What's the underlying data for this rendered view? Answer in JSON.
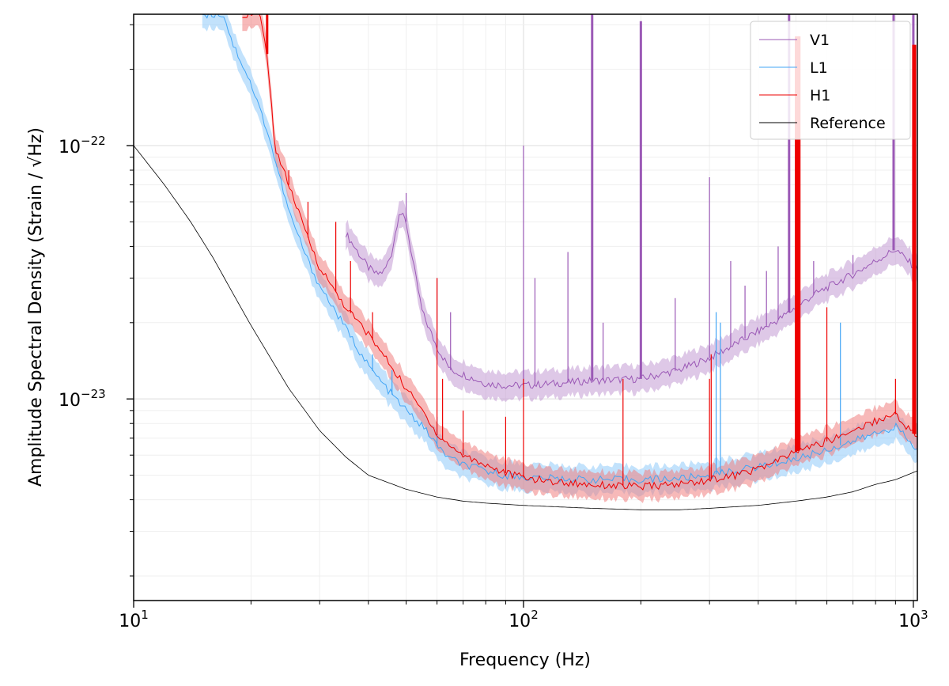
{
  "chart_data": {
    "type": "line",
    "title": "",
    "xlabel": "Frequency (Hz)",
    "ylabel": "Amplitude Spectral Density (Strain / √Hz)",
    "xscale": "log",
    "yscale": "log",
    "xlim": [
      10,
      1024
    ],
    "ylim": [
      1.6e-24,
      3.3e-22
    ],
    "grid": true,
    "legend_position": "top-right",
    "x_ticks": [
      {
        "value": 10,
        "base": "10",
        "exp": "1"
      },
      {
        "value": 100,
        "base": "10",
        "exp": "2"
      },
      {
        "value": 1000,
        "base": "10",
        "exp": "3"
      }
    ],
    "y_ticks": [
      {
        "value": 1e-23,
        "base": "10",
        "exp": "−23"
      },
      {
        "value": 1e-22,
        "base": "10",
        "exp": "−22"
      }
    ],
    "series": [
      {
        "name": "V1",
        "color": "#9b59b6",
        "band_color": "#c39bd3",
        "x": [
          35,
          38,
          40,
          42,
          44,
          46,
          48,
          50,
          52,
          55,
          60,
          65,
          70,
          80,
          90,
          100,
          120,
          150,
          200,
          250,
          300,
          350,
          400,
          450,
          500,
          550,
          600,
          700,
          800,
          900,
          1000,
          1024
        ],
        "y": [
          4.5e-23,
          3.7e-23,
          3.3e-23,
          3.1e-23,
          3.2e-23,
          3.8e-23,
          5.5e-23,
          5e-23,
          3.5e-23,
          2.2e-23,
          1.6e-23,
          1.3e-23,
          1.25e-23,
          1.15e-23,
          1.13e-23,
          1.13e-23,
          1.15e-23,
          1.18e-23,
          1.2e-23,
          1.3e-23,
          1.45e-23,
          1.65e-23,
          1.85e-23,
          2.05e-23,
          2.3e-23,
          2.55e-23,
          2.75e-23,
          3.1e-23,
          3.5e-23,
          3.9e-23,
          3.35e-23,
          3.3e-23
        ],
        "spikes": [
          {
            "f": 50,
            "v": 6.5e-23
          },
          {
            "f": 60,
            "v": 3e-23
          },
          {
            "f": 65,
            "v": 2.2e-23
          },
          {
            "f": 100,
            "v": 1e-22
          },
          {
            "f": 107,
            "v": 3e-23
          },
          {
            "f": 130,
            "v": 3.8e-23
          },
          {
            "f": 150,
            "v": 3.3e-22
          },
          {
            "f": 160,
            "v": 2e-23
          },
          {
            "f": 200,
            "v": 3.1e-22
          },
          {
            "f": 245,
            "v": 2.5e-23
          },
          {
            "f": 300,
            "v": 7.5e-23
          },
          {
            "f": 340,
            "v": 3.5e-23
          },
          {
            "f": 370,
            "v": 2.8e-23
          },
          {
            "f": 420,
            "v": 3.2e-23
          },
          {
            "f": 450,
            "v": 4e-23
          },
          {
            "f": 480,
            "v": 3.3e-22
          },
          {
            "f": 500,
            "v": 5e-23
          },
          {
            "f": 555,
            "v": 3.5e-23
          },
          {
            "f": 700,
            "v": 3.7e-23
          },
          {
            "f": 890,
            "v": 3.3e-22
          },
          {
            "f": 1000,
            "v": 3.3e-22
          }
        ]
      },
      {
        "name": "L1",
        "color": "#42a5f5",
        "band_color": "#90caf9",
        "x": [
          15,
          16,
          17,
          18,
          19,
          20,
          22,
          25,
          28,
          30,
          35,
          40,
          45,
          50,
          55,
          58,
          60,
          65,
          70,
          80,
          90,
          100,
          120,
          150,
          200,
          250,
          300,
          350,
          400,
          500,
          600,
          700,
          800,
          900,
          1000,
          1024
        ],
        "y": [
          3.3e-22,
          3.3e-22,
          3.3e-22,
          2.5e-22,
          2.1e-22,
          1.75e-22,
          1.15e-22,
          5.5e-23,
          3.5e-23,
          2.8e-23,
          1.9e-23,
          1.35e-23,
          1.08e-23,
          9e-24,
          7.8e-24,
          7.1e-24,
          6.5e-24,
          5.8e-24,
          5.5e-24,
          5.2e-24,
          5e-24,
          4.9e-24,
          4.85e-24,
          4.8e-24,
          4.8e-24,
          4.85e-24,
          5e-24,
          5.2e-24,
          5.4e-24,
          5.8e-24,
          6.3e-24,
          6.8e-24,
          7.3e-24,
          7.8e-24,
          6.5e-24,
          6.3e-24
        ],
        "spikes": [
          {
            "f": 41,
            "v": 1.5e-23
          },
          {
            "f": 46,
            "v": 1.3e-23
          },
          {
            "f": 60,
            "v": 8.5e-24
          },
          {
            "f": 312,
            "v": 2.2e-23
          },
          {
            "f": 320,
            "v": 2e-23
          },
          {
            "f": 500,
            "v": 2.3e-23
          },
          {
            "f": 650,
            "v": 2e-23
          }
        ]
      },
      {
        "name": "H1",
        "color": "#ee0000",
        "band_color": "#f08080",
        "x": [
          19,
          20,
          21,
          22,
          23,
          25,
          27,
          30,
          35,
          40,
          45,
          50,
          55,
          58,
          60,
          65,
          70,
          80,
          90,
          100,
          120,
          150,
          200,
          250,
          300,
          350,
          400,
          450,
          500,
          600,
          700,
          800,
          900,
          1000,
          1024
        ],
        "y": [
          3.3e-22,
          3.3e-22,
          3.3e-22,
          2.3e-22,
          1e-22,
          7e-23,
          5e-23,
          3.3e-23,
          2.3e-23,
          1.8e-23,
          1.4e-23,
          1.1e-23,
          9e-24,
          8e-24,
          7.2e-24,
          6.5e-24,
          6e-24,
          5.5e-24,
          5.1e-24,
          4.9e-24,
          4.7e-24,
          4.6e-24,
          4.5e-24,
          4.6e-24,
          4.8e-24,
          5e-24,
          5.3e-24,
          5.7e-24,
          6.2e-24,
          6.8e-24,
          7.5e-24,
          8.2e-24,
          8.7e-24,
          7.3e-24,
          7.2e-24
        ],
        "spikes": [
          {
            "f": 22,
            "v": 3.3e-22
          },
          {
            "f": 25,
            "v": 8e-23
          },
          {
            "f": 28,
            "v": 6e-23
          },
          {
            "f": 33,
            "v": 5e-23
          },
          {
            "f": 36,
            "v": 3.5e-23
          },
          {
            "f": 41,
            "v": 2.2e-23
          },
          {
            "f": 60,
            "v": 3e-23
          },
          {
            "f": 62,
            "v": 1.2e-23
          },
          {
            "f": 70,
            "v": 9e-24
          },
          {
            "f": 90,
            "v": 8.5e-24
          },
          {
            "f": 100,
            "v": 1.2e-23
          },
          {
            "f": 180,
            "v": 1.2e-23
          },
          {
            "f": 300,
            "v": 1.2e-23
          },
          {
            "f": 303,
            "v": 1.5e-23
          },
          {
            "f": 500,
            "v": 2.7e-22
          },
          {
            "f": 505,
            "v": 2.7e-22
          },
          {
            "f": 510,
            "v": 2.7e-22
          },
          {
            "f": 600,
            "v": 2.3e-23
          },
          {
            "f": 900,
            "v": 1.2e-23
          },
          {
            "f": 1000,
            "v": 2.5e-22
          },
          {
            "f": 1010,
            "v": 2.5e-22
          }
        ]
      },
      {
        "name": "Reference",
        "color": "#000000",
        "x": [
          10,
          12,
          14,
          16,
          18,
          20,
          25,
          30,
          35,
          40,
          50,
          60,
          70,
          80,
          100,
          150,
          200,
          250,
          300,
          400,
          500,
          600,
          700,
          800,
          900,
          1024
        ],
        "y": [
          1e-22,
          7e-23,
          5e-23,
          3.6e-23,
          2.6e-23,
          1.95e-23,
          1.1e-23,
          7.5e-24,
          5.9e-24,
          5e-24,
          4.4e-24,
          4.1e-24,
          3.95e-24,
          3.88e-24,
          3.8e-24,
          3.7e-24,
          3.65e-24,
          3.65e-24,
          3.7e-24,
          3.8e-24,
          3.95e-24,
          4.1e-24,
          4.3e-24,
          4.6e-24,
          4.8e-24,
          5.2e-24
        ]
      }
    ]
  }
}
